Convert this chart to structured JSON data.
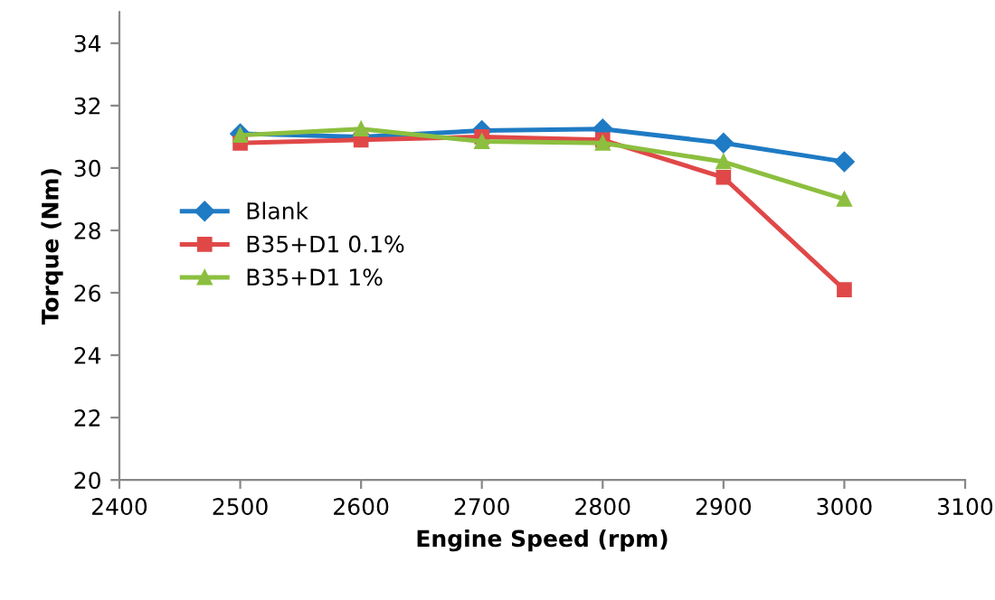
{
  "chart_data": {
    "type": "line",
    "xlabel": "Engine Speed (rpm)",
    "ylabel": "Torque (Nm)",
    "x": [
      2500,
      2600,
      2700,
      2800,
      2900,
      3000
    ],
    "series": [
      {
        "name": "Blank",
        "color": "#1f7bc4",
        "marker": "diamond",
        "values": [
          31.1,
          31.0,
          31.2,
          31.25,
          30.8,
          30.2
        ]
      },
      {
        "name": "B35+D1 0.1%",
        "color": "#e04848",
        "marker": "square",
        "values": [
          30.8,
          30.9,
          31.0,
          30.9,
          29.7,
          26.1
        ]
      },
      {
        "name": "B35+D1 1%",
        "color": "#8cbf3f",
        "marker": "triangle",
        "values": [
          31.05,
          31.25,
          30.85,
          30.8,
          30.2,
          29.0
        ]
      }
    ],
    "xlim": [
      2400,
      3100
    ],
    "xticks": [
      2400,
      2500,
      2600,
      2700,
      2800,
      2900,
      3000,
      3100
    ],
    "ylim": [
      20,
      35
    ],
    "yticks": [
      20,
      22,
      24,
      26,
      28,
      30,
      32,
      34
    ],
    "grid": false,
    "legend": "center left",
    "line_style": "solid"
  }
}
